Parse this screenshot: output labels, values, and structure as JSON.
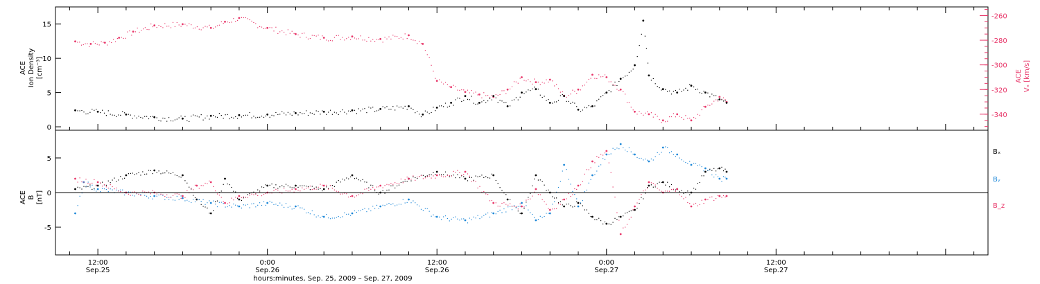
{
  "colors": {
    "black": "#000000",
    "pink": "#e8376a",
    "blue": "#1e88d8"
  },
  "x_axis": {
    "title": "hours:minutes, Sep. 25, 2009 – Sep. 27, 2009",
    "range_hours": [
      -3,
      63
    ],
    "major_ticks": [
      {
        "hour": 0,
        "time": "12:00",
        "date": "Sep.25"
      },
      {
        "hour": 12,
        "time": "0:00",
        "date": "Sep.26"
      },
      {
        "hour": 24,
        "time": "12:00",
        "date": "Sep.26"
      },
      {
        "hour": 36,
        "time": "0:00",
        "date": "Sep.27"
      },
      {
        "hour": 48,
        "time": "12:00",
        "date": "Sep.27"
      }
    ]
  },
  "chart_data": [
    {
      "type": "scatter",
      "panel": "top",
      "xlim": [
        -3,
        63
      ],
      "ylabel_left": [
        "ACE",
        "Ion Density",
        "[cm⁻³]"
      ],
      "ylim_left": [
        -0.5,
        17.5
      ],
      "yticks_left": [
        0,
        5,
        10,
        15
      ],
      "ylabel_right": [
        "ACE",
        "Vₓ [km/s]"
      ],
      "ylim_right": [
        -353,
        -253
      ],
      "yticks_right": [
        -260,
        -280,
        -300,
        -320,
        -340
      ],
      "series": [
        {
          "axis": "left",
          "color": "#000000",
          "points": [
            [
              -1.6,
              2.4
            ],
            [
              0,
              2.2
            ],
            [
              2,
              1.8
            ],
            [
              4,
              1.4
            ],
            [
              6,
              1.2
            ],
            [
              8,
              1.6
            ],
            [
              10,
              1.7
            ],
            [
              12,
              1.8
            ],
            [
              14,
              2.0
            ],
            [
              16,
              2.2
            ],
            [
              18,
              2.4
            ],
            [
              20,
              2.6
            ],
            [
              22,
              3.0
            ],
            [
              23,
              1.8
            ],
            [
              24,
              2.8
            ],
            [
              25,
              3.5
            ],
            [
              26,
              4.5
            ],
            [
              27,
              3.5
            ],
            [
              28,
              4.5
            ],
            [
              29,
              3.0
            ],
            [
              30,
              5.0
            ],
            [
              31,
              5.5
            ],
            [
              32,
              3.5
            ],
            [
              33,
              4.5
            ],
            [
              34,
              2.5
            ],
            [
              35,
              3.0
            ],
            [
              36,
              5.0
            ],
            [
              37,
              7.0
            ],
            [
              38,
              9.0
            ],
            [
              38.6,
              15.5
            ],
            [
              39,
              7.5
            ],
            [
              40,
              5.5
            ],
            [
              41,
              5.0
            ],
            [
              42,
              6.0
            ],
            [
              43,
              5.0
            ],
            [
              44,
              4.0
            ],
            [
              44.5,
              3.5
            ]
          ]
        },
        {
          "axis": "right",
          "color": "#e8376a",
          "points": [
            [
              -1.6,
              -281
            ],
            [
              -0.5,
              -283
            ],
            [
              0.5,
              -282
            ],
            [
              1.5,
              -278
            ],
            [
              2.5,
              -273
            ],
            [
              4,
              -268
            ],
            [
              6,
              -267
            ],
            [
              8,
              -270
            ],
            [
              9,
              -265
            ],
            [
              10,
              -262
            ],
            [
              12,
              -270
            ],
            [
              14,
              -275
            ],
            [
              16,
              -278
            ],
            [
              18,
              -277
            ],
            [
              20,
              -279
            ],
            [
              22,
              -276
            ],
            [
              23,
              -283
            ],
            [
              24,
              -313
            ],
            [
              25,
              -318
            ],
            [
              26,
              -322
            ],
            [
              27,
              -324
            ],
            [
              28,
              -326
            ],
            [
              29,
              -320
            ],
            [
              30,
              -310
            ],
            [
              31,
              -314
            ],
            [
              32,
              -312
            ],
            [
              33,
              -325
            ],
            [
              34,
              -320
            ],
            [
              35,
              -308
            ],
            [
              36,
              -310
            ],
            [
              37,
              -320
            ],
            [
              38,
              -338
            ],
            [
              39,
              -340
            ],
            [
              40,
              -345
            ],
            [
              41,
              -340
            ],
            [
              42,
              -345
            ],
            [
              43,
              -334
            ],
            [
              44,
              -326
            ],
            [
              44.5,
              -330
            ]
          ]
        }
      ]
    },
    {
      "type": "scatter",
      "panel": "bottom",
      "xlim": [
        -3,
        63
      ],
      "ylabel_left": [
        "ACE",
        "B",
        "[nT]"
      ],
      "ylim_left": [
        -9,
        9
      ],
      "yticks_left": [
        -5,
        0,
        5
      ],
      "series": [
        {
          "name": "Bₓ",
          "color": "#000000",
          "points": [
            [
              -1.6,
              0.5
            ],
            [
              0,
              1.0
            ],
            [
              2,
              2.5
            ],
            [
              4,
              3.2
            ],
            [
              6,
              2.5
            ],
            [
              7,
              -1.0
            ],
            [
              8,
              -3.0
            ],
            [
              9,
              2.0
            ],
            [
              10,
              -1.0
            ],
            [
              12,
              1.0
            ],
            [
              14,
              1.0
            ],
            [
              16,
              0.5
            ],
            [
              18,
              2.5
            ],
            [
              20,
              0
            ],
            [
              22,
              2.0
            ],
            [
              24,
              3.0
            ],
            [
              26,
              2.0
            ],
            [
              28,
              2.5
            ],
            [
              29,
              -1.0
            ],
            [
              30,
              -3.0
            ],
            [
              31,
              2.5
            ],
            [
              32,
              0
            ],
            [
              33,
              -2.0
            ],
            [
              34,
              -1.5
            ],
            [
              35,
              -3.5
            ],
            [
              36,
              -4.5
            ],
            [
              37,
              -3.5
            ],
            [
              38,
              -2.5
            ],
            [
              39,
              1.0
            ],
            [
              40,
              1.5
            ],
            [
              41,
              0.5
            ],
            [
              42,
              0
            ],
            [
              43,
              3.0
            ],
            [
              44,
              3.5
            ],
            [
              44.5,
              3.0
            ]
          ]
        },
        {
          "name": "Bᵧ",
          "color": "#1e88d8",
          "points": [
            [
              -1.6,
              -3.0
            ],
            [
              -1,
              1.5
            ],
            [
              0,
              0.5
            ],
            [
              2,
              0
            ],
            [
              4,
              -0.5
            ],
            [
              6,
              -0.8
            ],
            [
              8,
              -1.5
            ],
            [
              10,
              -2.0
            ],
            [
              12,
              -1.5
            ],
            [
              14,
              -2.0
            ],
            [
              16,
              -3.5
            ],
            [
              18,
              -3.0
            ],
            [
              20,
              -2.0
            ],
            [
              22,
              -1.0
            ],
            [
              24,
              -3.5
            ],
            [
              26,
              -4.0
            ],
            [
              28,
              -3.0
            ],
            [
              30,
              -1.5
            ],
            [
              31,
              -4.0
            ],
            [
              32,
              -3.0
            ],
            [
              33,
              4.0
            ],
            [
              34,
              -2.0
            ],
            [
              35,
              2.5
            ],
            [
              36,
              5.5
            ],
            [
              37,
              7.0
            ],
            [
              38,
              5.5
            ],
            [
              39,
              4.5
            ],
            [
              40,
              6.5
            ],
            [
              41,
              5.5
            ],
            [
              42,
              4.0
            ],
            [
              43,
              3.5
            ],
            [
              44,
              2.0
            ],
            [
              44.5,
              2.0
            ]
          ]
        },
        {
          "name": "B_z",
          "color": "#e8376a",
          "points": [
            [
              -1.6,
              2.0
            ],
            [
              0,
              1.5
            ],
            [
              2,
              0
            ],
            [
              4,
              0
            ],
            [
              6,
              -0.5
            ],
            [
              7,
              1.0
            ],
            [
              8,
              1.5
            ],
            [
              9,
              -1.5
            ],
            [
              10,
              -0.5
            ],
            [
              12,
              0
            ],
            [
              14,
              0.5
            ],
            [
              16,
              1.0
            ],
            [
              18,
              -0.5
            ],
            [
              20,
              1.0
            ],
            [
              22,
              2.0
            ],
            [
              24,
              2.5
            ],
            [
              26,
              3.0
            ],
            [
              28,
              -1.5
            ],
            [
              30,
              -2.0
            ],
            [
              31,
              0.5
            ],
            [
              32,
              -2.5
            ],
            [
              33,
              -1.0
            ],
            [
              34,
              1.0
            ],
            [
              35,
              4.5
            ],
            [
              36,
              6.0
            ],
            [
              37,
              -6.0
            ],
            [
              38,
              -2.0
            ],
            [
              39,
              1.5
            ],
            [
              40,
              0
            ],
            [
              41,
              0.5
            ],
            [
              42,
              -2.0
            ],
            [
              43,
              -1.0
            ],
            [
              44,
              -0.5
            ],
            [
              44.5,
              -0.5
            ]
          ]
        }
      ]
    }
  ]
}
